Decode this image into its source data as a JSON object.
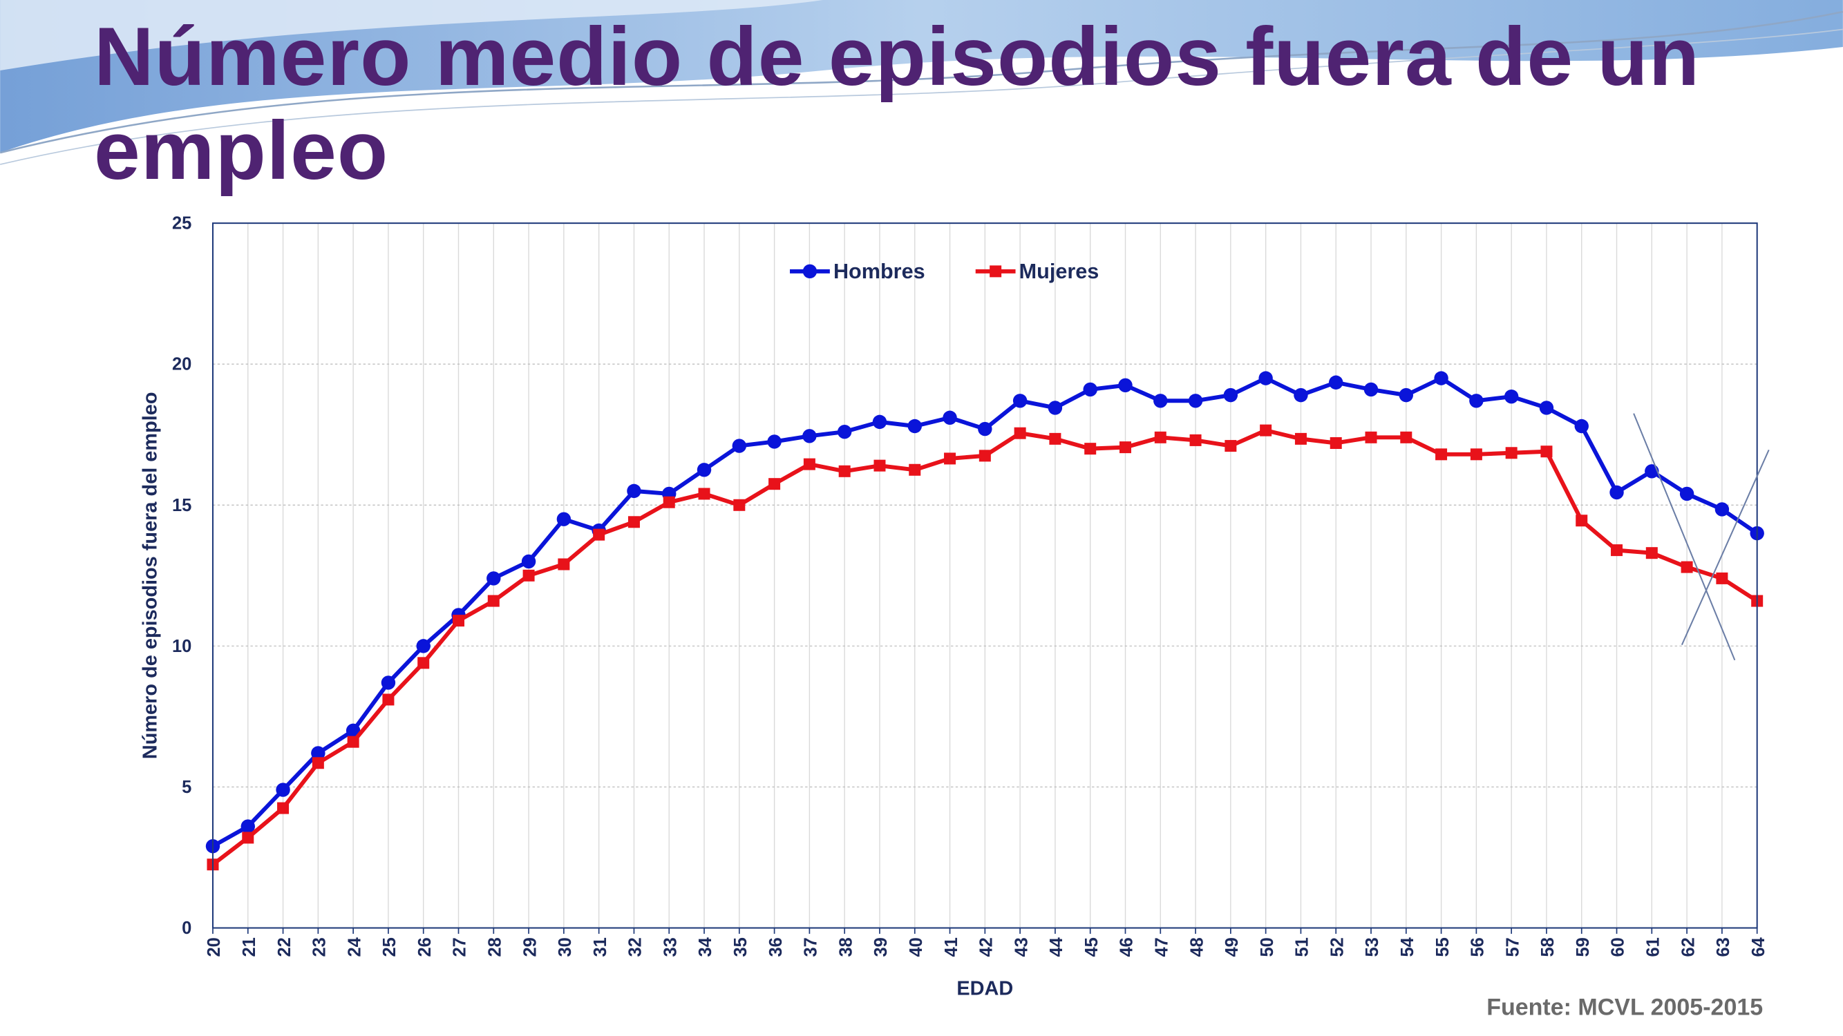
{
  "chart_data": {
    "type": "line",
    "title": "Número medio de episodios fuera de un empleo",
    "x_label": "EDAD",
    "y_label": "Número de episodios fuera del empleo",
    "source": "Fuente: MCVL 2005-2015",
    "x": [
      20,
      21,
      22,
      23,
      24,
      25,
      26,
      27,
      28,
      29,
      30,
      31,
      32,
      33,
      34,
      35,
      36,
      37,
      38,
      39,
      40,
      41,
      42,
      43,
      44,
      45,
      46,
      47,
      48,
      49,
      50,
      51,
      52,
      53,
      54,
      55,
      56,
      57,
      58,
      59,
      60,
      61,
      62,
      63,
      64
    ],
    "series": [
      {
        "name": "Hombres",
        "color": "#0a14d9",
        "marker": "circle",
        "values": [
          2.9,
          3.6,
          4.9,
          6.2,
          7.0,
          8.7,
          10.0,
          11.1,
          12.4,
          13.0,
          14.5,
          14.1,
          15.5,
          15.4,
          16.25,
          17.1,
          17.25,
          17.45,
          17.6,
          17.95,
          17.8,
          18.1,
          17.7,
          18.7,
          18.45,
          19.1,
          19.25,
          18.7,
          18.7,
          18.9,
          19.5,
          18.9,
          19.35,
          19.1,
          18.9,
          19.5,
          18.7,
          18.85,
          18.45,
          17.8,
          15.45,
          16.2,
          15.4,
          14.85,
          14.0
        ]
      },
      {
        "name": "Mujeres",
        "color": "#e8121a",
        "marker": "square",
        "values": [
          2.25,
          3.2,
          4.25,
          5.85,
          6.6,
          8.1,
          9.4,
          10.9,
          11.6,
          12.5,
          12.9,
          13.95,
          14.4,
          15.1,
          15.4,
          15.0,
          15.75,
          16.45,
          16.2,
          16.4,
          16.25,
          16.65,
          16.75,
          17.55,
          17.35,
          17.0,
          17.05,
          17.4,
          17.3,
          17.1,
          17.65,
          17.35,
          17.2,
          17.4,
          17.4,
          16.8,
          16.8,
          16.85,
          16.9,
          14.45,
          13.4,
          13.3,
          12.8,
          12.4,
          11.6
        ]
      }
    ],
    "xlim": [
      20,
      64
    ],
    "xticks": [
      20,
      21,
      22,
      23,
      24,
      25,
      26,
      27,
      28,
      29,
      30,
      31,
      32,
      33,
      34,
      35,
      36,
      37,
      38,
      39,
      40,
      41,
      42,
      43,
      44,
      45,
      46,
      47,
      48,
      49,
      50,
      51,
      52,
      53,
      54,
      55,
      56,
      57,
      58,
      59,
      60,
      61,
      62,
      63,
      64
    ],
    "ylim": [
      0,
      25
    ],
    "yticks": [
      0,
      5,
      10,
      15,
      20,
      25
    ],
    "grid": true,
    "legend": "top"
  }
}
